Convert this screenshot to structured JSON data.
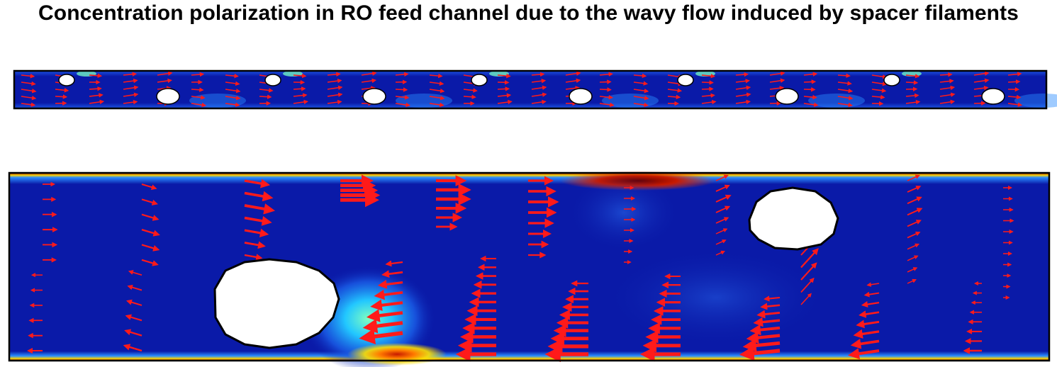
{
  "title": "Concentration polarization in RO feed channel due to the wavy flow induced by spacer filaments",
  "colors": {
    "background_field": "#0a1aa8",
    "arrow": "#ff1a1a",
    "filament": "#ffffff",
    "outline": "#000000",
    "high_concentration": "#c81a00"
  },
  "panels": [
    {
      "name": "overview-channel",
      "description_visible": ""
    },
    {
      "name": "zoomed-channel",
      "description_visible": ""
    }
  ]
}
